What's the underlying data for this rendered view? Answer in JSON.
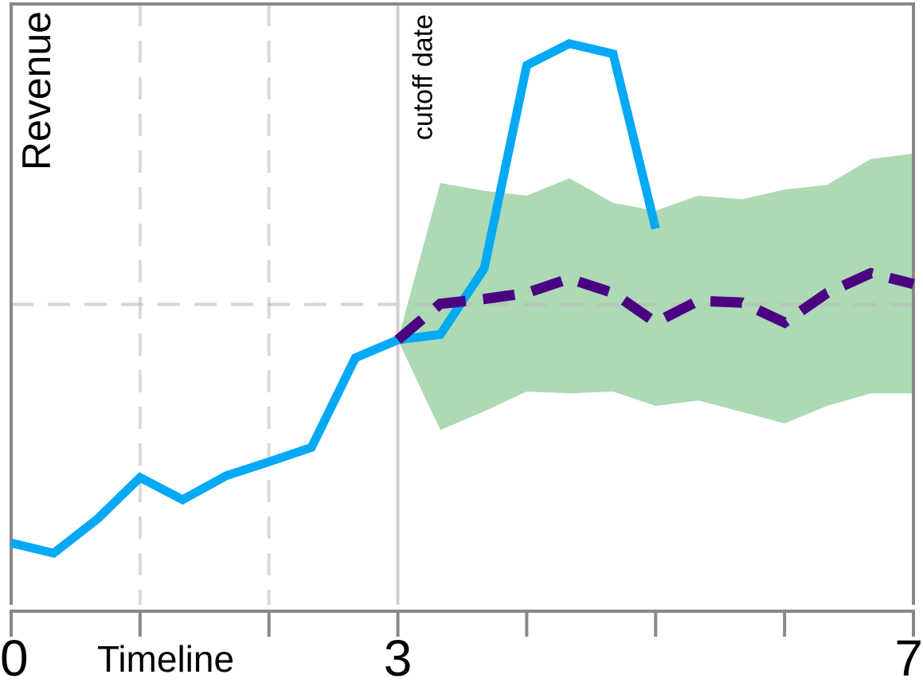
{
  "chart_data": {
    "type": "line",
    "x_label": "Timeline",
    "y_label": "Revenue",
    "annotation": "cutoff date",
    "cutoff_x": 3,
    "xlim": [
      0,
      7
    ],
    "ylim": [
      0,
      100
    ],
    "xticks": [
      0,
      3,
      7
    ],
    "xminor_ticks": [
      1,
      2,
      4,
      5,
      6
    ],
    "x_gridlines": [
      1,
      2
    ],
    "y_gridlines": [
      50
    ],
    "series": [
      {
        "color": "#03a9f4",
        "style": "solid",
        "x": [
          0,
          0.33,
          0.67,
          1,
          1.33,
          1.67,
          2,
          2.33,
          2.67,
          3,
          3.33,
          3.67,
          4,
          4.33,
          4.67,
          5
        ],
        "values": [
          10.3,
          8.6,
          14.3,
          21.2,
          17.5,
          21.5,
          23.8,
          26.2,
          41.1,
          44.1,
          45.0,
          56.0,
          89.8,
          93.4,
          91.7,
          62.6
        ]
      },
      {
        "color": "#4b0082",
        "style": "dashed",
        "x": [
          3,
          3.33,
          3.67,
          4,
          4.33,
          4.67,
          5,
          5.33,
          5.67,
          6,
          6.33,
          6.67,
          7
        ],
        "values": [
          44.1,
          50.1,
          50.9,
          51.9,
          54.3,
          51.9,
          47.0,
          50.6,
          50.3,
          47.0,
          51.9,
          55.2,
          53.4
        ]
      }
    ],
    "band": {
      "color": "#add9b5",
      "x": [
        3,
        3.33,
        3.67,
        4,
        4.33,
        4.67,
        5,
        5.33,
        5.67,
        6,
        6.33,
        6.67,
        7
      ],
      "upper": [
        44.1,
        70.2,
        68.9,
        68.1,
        71.0,
        66.9,
        65.6,
        68.1,
        67.5,
        69.1,
        69.9,
        74.2,
        75.1
      ],
      "lower": [
        44.1,
        29.1,
        32.2,
        35.5,
        35.2,
        35.5,
        33.1,
        34.0,
        32.1,
        30.2,
        33.1,
        35.2,
        35.2
      ]
    }
  }
}
